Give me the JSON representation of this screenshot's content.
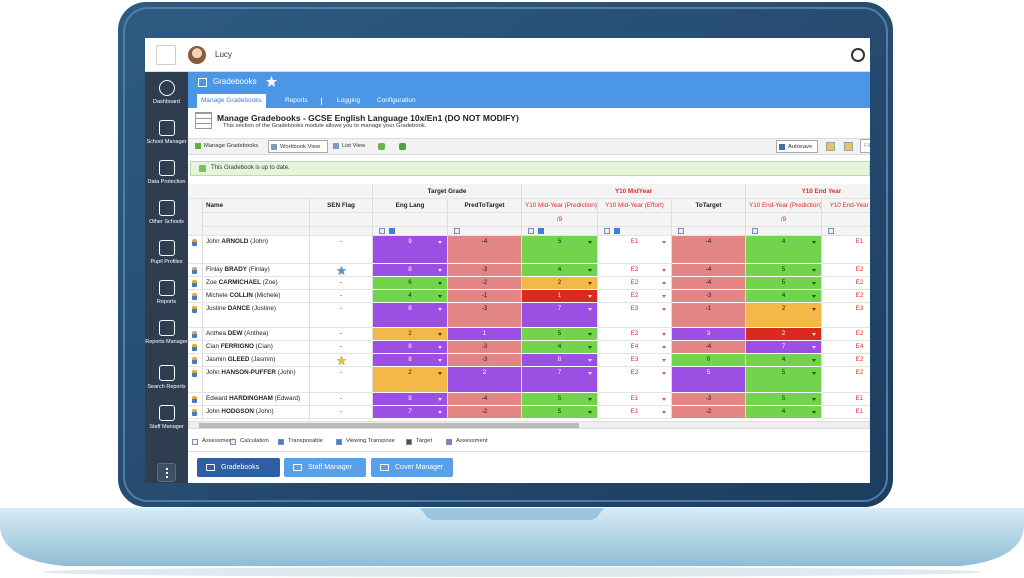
{
  "topbar": {
    "user": "Lucy"
  },
  "sidebar": {
    "items": [
      "Dashboard",
      "School Manager",
      "Data Protection",
      "Other Schools",
      "Pupil Profiles",
      "Reports",
      "Reports Manager",
      "Search Reports",
      "Staff Manager"
    ]
  },
  "header": {
    "title": "Gradebooks",
    "tabs": [
      "Manage Gradebooks",
      "Reports",
      "Logging",
      "Configuration"
    ]
  },
  "page": {
    "title": "Manage Gradebooks - GCSE English Language 10x/En1 (DO NOT MODIFY)",
    "subtitle": "This section of the Gradebooks module allows you to manage your Gradebook."
  },
  "toolbar": {
    "items": [
      "Manage Gradebooks",
      "Workbook View",
      "List View"
    ],
    "autosave": "Autosave",
    "filter": "Filter"
  },
  "message": "This Gradebook is up to date.",
  "table": {
    "groups": [
      "Target Grade",
      "Y10 MidYear",
      "Y10 End Year"
    ],
    "columns": [
      "Name",
      "SEN Flag",
      "Eng Lang",
      "PredToTarget",
      "Y10 Mid-Year (Prediction)",
      "Y10 Mid-Year (Effort)",
      "ToTarget",
      "Y10 End-Year (Prediction)",
      "Y10 End-Year (Effort)"
    ],
    "scales": [
      "/9",
      "/9"
    ],
    "rows": [
      {
        "first": "John",
        "last": "ARNOLD",
        "known": "(John)",
        "sen": "-",
        "cells": [
          9,
          -4,
          5,
          "E1",
          -4,
          4,
          "E1"
        ],
        "colors": [
          "#9c4fe3",
          "#e38585",
          "#72d34c",
          "#ffffff",
          "#e38585",
          "#72d34c",
          "#ffffff"
        ]
      },
      {
        "first": "Finlay",
        "last": "BRADY",
        "known": "(Finlay)",
        "sen_star": "#5b8de8",
        "cells": [
          8,
          -3,
          4,
          "E2",
          -4,
          5,
          "E2"
        ],
        "colors": [
          "#9c4fe3",
          "#e38585",
          "#72d34c",
          "#ffffff",
          "#e38585",
          "#72d34c",
          "#ffffff"
        ]
      },
      {
        "first": "Zoe",
        "last": "CARMICHAEL",
        "known": "(Zoe)",
        "sen": "-",
        "cells": [
          6,
          -2,
          2,
          "E2",
          -4,
          5,
          "E2"
        ],
        "colors": [
          "#72d34c",
          "#e38585",
          "#f3b847",
          "#ffffff",
          "#e38585",
          "#72d34c",
          "#ffffff"
        ]
      },
      {
        "first": "Michele",
        "last": "COLLIN",
        "known": "(Michele)",
        "sen": "-",
        "cells": [
          4,
          -1,
          1,
          "E2",
          -3,
          4,
          "E2"
        ],
        "colors": [
          "#72d34c",
          "#e38585",
          "#da2a20",
          "#ffffff",
          "#e38585",
          "#72d34c",
          "#ffffff"
        ]
      },
      {
        "first": "Justine",
        "last": "DANCE",
        "known": "(Justine)",
        "sen": "-",
        "cells": [
          8,
          -3,
          7,
          "E3",
          -1,
          2,
          "E3"
        ],
        "colors": [
          "#9c4fe3",
          "#e38585",
          "#9c4fe3",
          "#ffffff",
          "#e38585",
          "#f3b847",
          "#ffffff"
        ]
      },
      {
        "first": "Anthea",
        "last": "DEW",
        "known": "(Anthea)",
        "sen": "-",
        "cells": [
          2,
          1,
          5,
          "E2",
          3,
          2,
          "E2"
        ],
        "colors": [
          "#f3b847",
          "#9c4fe3",
          "#72d34c",
          "#ffffff",
          "#9c4fe3",
          "#da2a20",
          "#ffffff"
        ]
      },
      {
        "first": "Cian",
        "last": "FERRIGNO",
        "known": "(Cian)",
        "sen": "-",
        "cells": [
          8,
          -3,
          4,
          "E4",
          -4,
          7,
          "E4"
        ],
        "colors": [
          "#9c4fe3",
          "#e38585",
          "#72d34c",
          "#ffffff",
          "#e38585",
          "#9c4fe3",
          "#ffffff"
        ]
      },
      {
        "first": "Jasmin",
        "last": "GLEED",
        "known": "(Jasmin)",
        "sen_star": "#f3c13a",
        "cells": [
          8,
          -3,
          8,
          "E3",
          0,
          4,
          "E2"
        ],
        "colors": [
          "#9c4fe3",
          "#e38585",
          "#9c4fe3",
          "#ffffff",
          "#72d34c",
          "#72d34c",
          "#ffffff"
        ]
      },
      {
        "first": "John",
        "last": "HANSON-PUFFER",
        "known": "(John)",
        "sen": "-",
        "cells": [
          2,
          2,
          7,
          "E2",
          5,
          5,
          "E2"
        ],
        "colors": [
          "#f3b847",
          "#9c4fe3",
          "#9c4fe3",
          "#ffffff",
          "#9c4fe3",
          "#72d34c",
          "#ffffff"
        ]
      },
      {
        "first": "Edward",
        "last": "HARDINGHAM",
        "known": "(Edward)",
        "sen": "-",
        "cells": [
          8,
          -4,
          5,
          "E1",
          -3,
          5,
          "E1"
        ],
        "colors": [
          "#9c4fe3",
          "#e38585",
          "#72d34c",
          "#ffffff",
          "#e38585",
          "#72d34c",
          "#ffffff"
        ]
      },
      {
        "first": "John",
        "last": "HODGSON",
        "known": "(John)",
        "sen": "-",
        "cells": [
          7,
          -2,
          5,
          "E1",
          -2,
          4,
          "E1"
        ],
        "colors": [
          "#9c4fe3",
          "#e38585",
          "#72d34c",
          "#ffffff",
          "#e38585",
          "#72d34c",
          "#ffffff"
        ]
      }
    ]
  },
  "legend": [
    "Assessment",
    "Calculation",
    "Transposable",
    "Viewing Transpose",
    "Target",
    "Assessment"
  ],
  "buttons": [
    "Gradebooks",
    "Staff Manager",
    "Cover Manager"
  ]
}
